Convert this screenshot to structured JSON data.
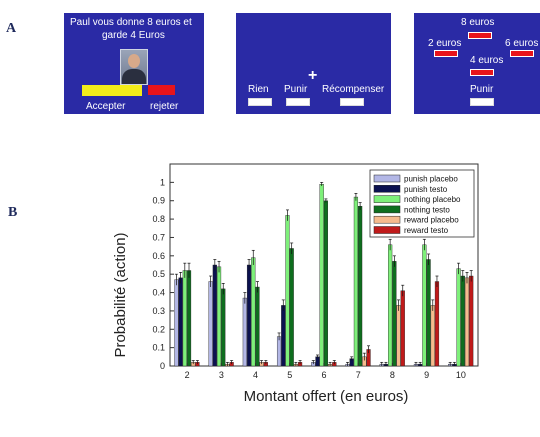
{
  "panels": {
    "A": {
      "letter": "A"
    },
    "B": {
      "letter": "B"
    }
  },
  "screen1": {
    "message_line1": "Paul vous donne 8 euros et",
    "message_line2": "garde 4 Euros",
    "accept_label": "Accepter",
    "reject_label": "rejeter"
  },
  "screen2": {
    "fixation": "+",
    "option_none": "Rien",
    "option_punish": "Punir",
    "option_reward": "Récompenser"
  },
  "screen3": {
    "amount_top": "8 euros",
    "amount_left": "2 euros",
    "amount_right": "6 euros",
    "amount_bottom": "4 euros",
    "action_label": "Punir"
  },
  "colors": {
    "screen_bg": "#2a2aa5",
    "accept": "#f3ec19",
    "reject": "#e8141b"
  },
  "chart_data": {
    "type": "bar",
    "title": "",
    "xlabel": "Montant offert (en euros)",
    "ylabel": "Probabilité (action)",
    "ylim": [
      0,
      1.1
    ],
    "yticks": [
      "0",
      "0.1",
      "0.2",
      "0.3",
      "0.4",
      "0.5",
      "0.6",
      "0.7",
      "0.8",
      "0.9",
      "1"
    ],
    "categories": [
      "2",
      "3",
      "4",
      "5",
      "6",
      "7",
      "8",
      "9",
      "10"
    ],
    "legend_position": "top-right",
    "series": [
      {
        "name": "punish placebo",
        "color": "#b3b7e6",
        "values": [
          0.47,
          0.46,
          0.37,
          0.16,
          0.02,
          0.01,
          0.01,
          0.01,
          0.01
        ],
        "errors": [
          0.03,
          0.03,
          0.03,
          0.02,
          0.01,
          0.01,
          0.01,
          0.01,
          0.01
        ]
      },
      {
        "name": "punish testo",
        "color": "#0b1150",
        "values": [
          0.48,
          0.55,
          0.55,
          0.33,
          0.05,
          0.04,
          0.01,
          0.01,
          0.01
        ],
        "errors": [
          0.03,
          0.03,
          0.03,
          0.03,
          0.01,
          0.01,
          0.01,
          0.01,
          0.01
        ]
      },
      {
        "name": "nothing placebo",
        "color": "#7ef07a",
        "values": [
          0.52,
          0.54,
          0.59,
          0.82,
          0.99,
          0.92,
          0.66,
          0.66,
          0.53
        ],
        "errors": [
          0.04,
          0.03,
          0.04,
          0.03,
          0.01,
          0.02,
          0.03,
          0.03,
          0.03
        ]
      },
      {
        "name": "nothing testo",
        "color": "#0e6e1e",
        "values": [
          0.52,
          0.42,
          0.43,
          0.64,
          0.9,
          0.87,
          0.57,
          0.58,
          0.49
        ],
        "errors": [
          0.04,
          0.03,
          0.03,
          0.03,
          0.01,
          0.02,
          0.03,
          0.03,
          0.03
        ]
      },
      {
        "name": "reward placebo",
        "color": "#f6bb8e",
        "values": [
          0.02,
          0.01,
          0.02,
          0.01,
          0.01,
          0.05,
          0.33,
          0.33,
          0.48
        ],
        "errors": [
          0.01,
          0.01,
          0.01,
          0.01,
          0.01,
          0.02,
          0.03,
          0.03,
          0.03
        ]
      },
      {
        "name": "reward testo",
        "color": "#c01a1a",
        "values": [
          0.02,
          0.02,
          0.02,
          0.02,
          0.02,
          0.09,
          0.41,
          0.46,
          0.49
        ],
        "errors": [
          0.01,
          0.01,
          0.01,
          0.01,
          0.01,
          0.02,
          0.03,
          0.03,
          0.03
        ]
      }
    ]
  }
}
